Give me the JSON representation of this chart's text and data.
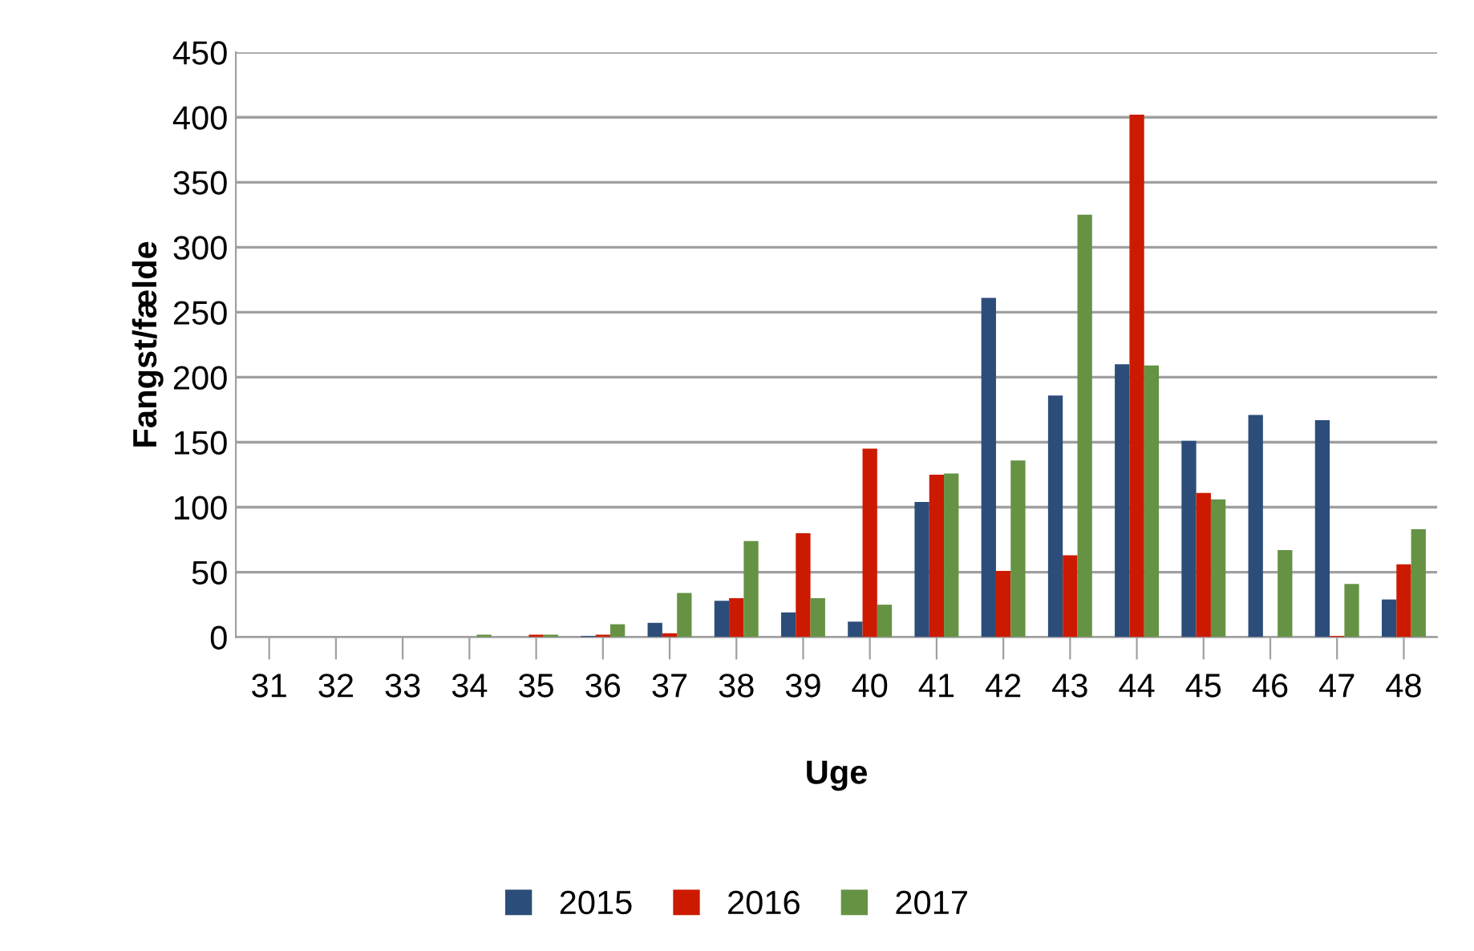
{
  "chart_data": {
    "type": "bar",
    "xlabel": "Uge",
    "ylabel": "Fangst/fælde",
    "categories": [
      "31",
      "32",
      "33",
      "34",
      "35",
      "36",
      "37",
      "38",
      "39",
      "40",
      "41",
      "42",
      "43",
      "44",
      "45",
      "46",
      "47",
      "48"
    ],
    "series": [
      {
        "name": "2015",
        "color": "#2c4d7a",
        "values": [
          0,
          0,
          0,
          0,
          0,
          1,
          11,
          28,
          19,
          12,
          104,
          261,
          186,
          210,
          151,
          171,
          167,
          29
        ]
      },
      {
        "name": "2016",
        "color": "#cc1a00",
        "values": [
          0,
          0,
          0,
          0,
          2,
          2,
          3,
          30,
          80,
          145,
          125,
          51,
          63,
          402,
          111,
          0,
          1,
          56
        ]
      },
      {
        "name": "2017",
        "color": "#669244",
        "values": [
          0,
          0,
          0,
          2,
          2,
          10,
          34,
          74,
          30,
          25,
          126,
          136,
          325,
          209,
          106,
          67,
          41,
          83
        ]
      }
    ],
    "ylim": [
      0,
      450
    ],
    "yticks": [
      0,
      50,
      100,
      150,
      200,
      250,
      300,
      350,
      400,
      450
    ],
    "grid": "y",
    "legend": "bottom"
  }
}
